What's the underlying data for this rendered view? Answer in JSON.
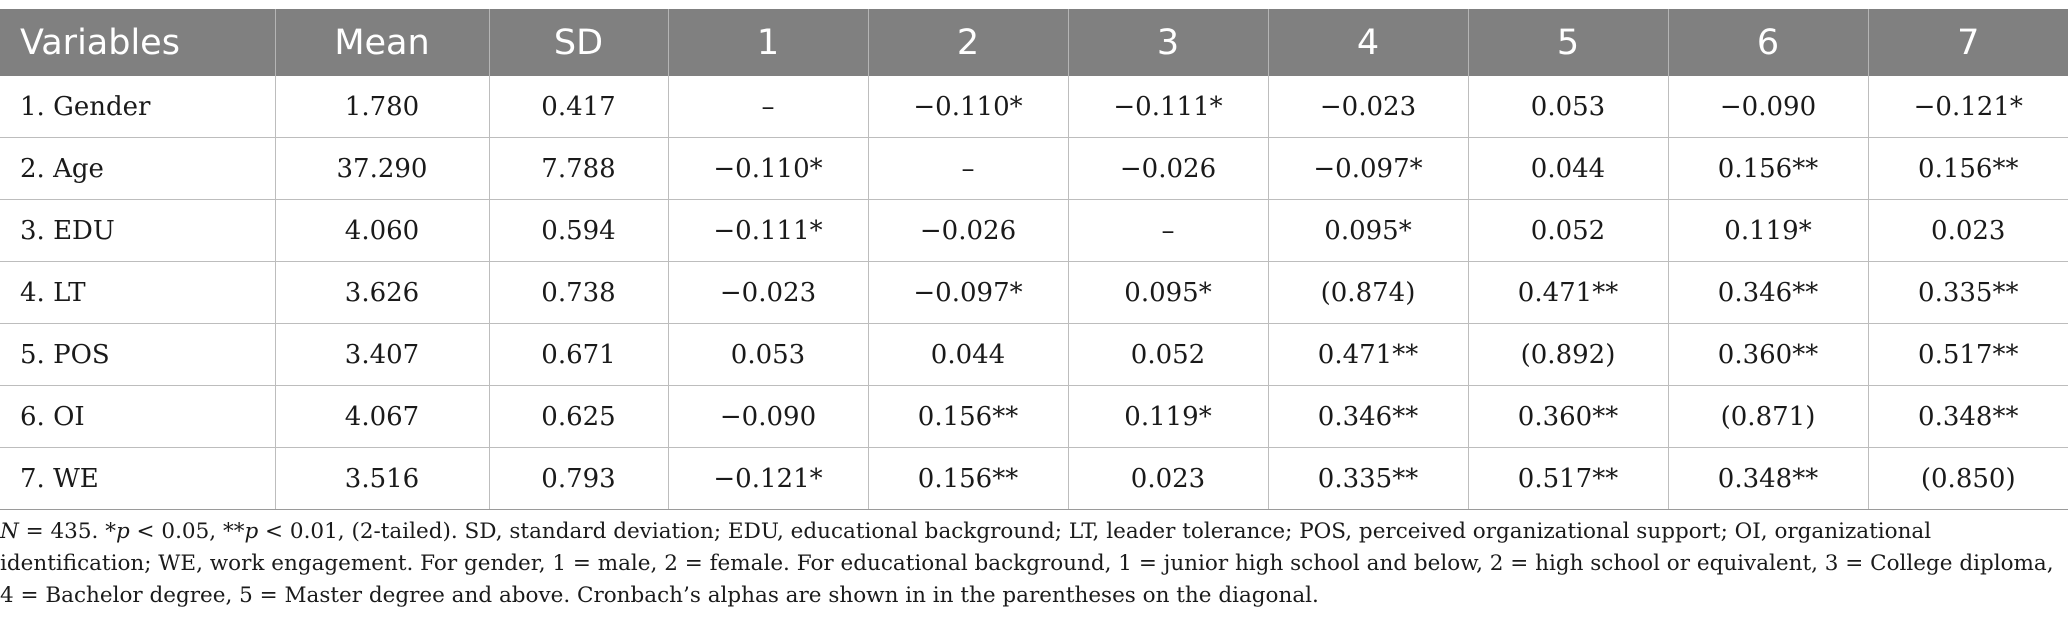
{
  "table": {
    "headers": [
      "Variables",
      "Mean",
      "SD",
      "1",
      "2",
      "3",
      "4",
      "5",
      "6",
      "7"
    ],
    "rows": [
      [
        "1. Gender",
        "1.780",
        "0.417",
        "–",
        "−0.110*",
        "−0.111*",
        "−0.023",
        "0.053",
        "−0.090",
        "−0.121*"
      ],
      [
        "2. Age",
        "37.290",
        "7.788",
        "−0.110*",
        "–",
        "−0.026",
        "−0.097*",
        "0.044",
        "0.156**",
        "0.156**"
      ],
      [
        "3. EDU",
        "4.060",
        "0.594",
        "−0.111*",
        "−0.026",
        "–",
        "0.095*",
        "0.052",
        "0.119*",
        "0.023"
      ],
      [
        "4. LT",
        "3.626",
        "0.738",
        "−0.023",
        "−0.097*",
        "0.095*",
        "(0.874)",
        "0.471**",
        "0.346**",
        "0.335**"
      ],
      [
        "5. POS",
        "3.407",
        "0.671",
        "0.053",
        "0.044",
        "0.052",
        "0.471**",
        "(0.892)",
        "0.360**",
        "0.517**"
      ],
      [
        "6. OI",
        "4.067",
        "0.625",
        "−0.090",
        "0.156**",
        "0.119*",
        "0.346**",
        "0.360**",
        "(0.871)",
        "0.348**"
      ],
      [
        "7. WE",
        "3.516",
        "0.793",
        "−0.121*",
        "0.156**",
        "0.023",
        "0.335**",
        "0.517**",
        "0.348**",
        "(0.850)"
      ]
    ]
  },
  "note": {
    "n_label": "N",
    "n_value": " = 435. *",
    "p1_label": "p",
    "p1_value": " < 0.05, **",
    "p2_label": "p",
    "rest": " < 0.01, (2-tailed). SD, standard deviation; EDU, educational background; LT, leader tolerance; POS, perceived organizational support; OI, organizational identification; WE, work engagement. For gender, 1 = male, 2 = female. For educational background, 1 = junior high school and below, 2 = high school or equivalent, 3 = College diploma, 4 = Bachelor degree, 5 = Master degree and above. Cronbach’s alphas are shown in in the parentheses on the diagonal."
  }
}
